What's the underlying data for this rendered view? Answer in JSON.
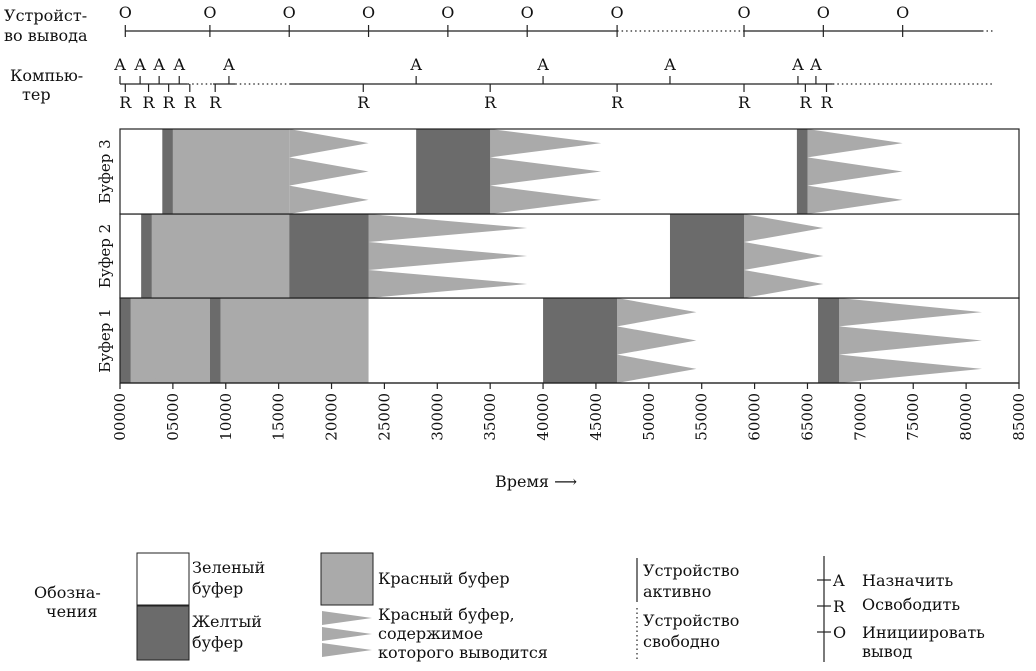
{
  "labels": {
    "device": [
      "Устройст-",
      "во вывода"
    ],
    "computer": [
      "Компью-",
      "тер"
    ],
    "buffers": [
      "Буфер 1",
      "Буфер 2",
      "Буфер 3"
    ],
    "time_axis": "Время ⟶",
    "legend_title": [
      "Обозна-",
      "чения"
    ],
    "legend_green": [
      "Зеленый",
      "буфер"
    ],
    "legend_yellow": [
      "Желтый",
      "буфер"
    ],
    "legend_red": "Красный буфер",
    "legend_red_out": [
      "Красный буфер,",
      "содержимое",
      "которого выводится"
    ],
    "legend_active": [
      "Устройство",
      "активно"
    ],
    "legend_idle": [
      "Устройство",
      "свободно"
    ],
    "legend_assign": "Назначить",
    "legend_release": "Освободить",
    "legend_output": "Инициировать",
    "legend_output2": "вывод",
    "letter_o": "O",
    "letter_a": "A",
    "letter_r": "R"
  },
  "colors": {
    "yellow": "#6b6b6b",
    "red": "#aaaaaa",
    "green": "#ffffff",
    "line": "#222222"
  },
  "time": {
    "min": 0,
    "max": 85000,
    "step": 5000,
    "tick_labels": [
      "00000",
      "05000",
      "10000",
      "15000",
      "20000",
      "25000",
      "30000",
      "35000",
      "40000",
      "45000",
      "50000",
      "55000",
      "60000",
      "65000",
      "70000",
      "75000",
      "80000",
      "85000"
    ]
  },
  "device_line": {
    "o_times": [
      500,
      8500,
      16000,
      23500,
      31000,
      38500,
      47000,
      59000,
      66500,
      74000
    ],
    "active": [
      [
        500,
        47000
      ],
      [
        59000,
        81500
      ]
    ],
    "idle": [
      [
        47000,
        59000
      ],
      [
        81500,
        82500
      ]
    ]
  },
  "computer_line": {
    "a_times": [
      0,
      1900,
      3700,
      5600,
      10300,
      28000,
      40000,
      52000,
      64100,
      65800
    ],
    "r_times": [
      500,
      2700,
      4600,
      6600,
      9000,
      23000,
      35000,
      47000,
      59000,
      64800,
      66800
    ],
    "active": [
      [
        0,
        6400
      ],
      [
        8800,
        10900
      ],
      [
        16000,
        67400
      ]
    ],
    "idle": [
      [
        6400,
        8800
      ],
      [
        10900,
        16000
      ],
      [
        67400,
        82500
      ]
    ]
  },
  "buffers": [
    {
      "name": "Буфер 1",
      "yellow": [
        [
          0,
          1000
        ],
        [
          8500,
          9500
        ],
        [
          40000,
          47000
        ],
        [
          66000,
          68000
        ]
      ],
      "red": [
        [
          1000,
          8500
        ],
        [
          9500,
          23500
        ],
        [
          47000,
          47000
        ],
        [
          68000,
          68000
        ]
      ],
      "output": [
        [
          1000,
          8500
        ],
        [
          9500,
          23500
        ],
        [
          47000,
          54500
        ],
        [
          68000,
          81500
        ]
      ]
    },
    {
      "name": "Буфер 2",
      "yellow": [
        [
          2000,
          3000
        ],
        [
          16000,
          23500
        ],
        [
          52000,
          59000
        ]
      ],
      "red": [
        [
          3000,
          16000
        ],
        [
          23500,
          23500
        ],
        [
          59000,
          59000
        ]
      ],
      "output": [
        [
          3000,
          16000
        ],
        [
          23500,
          38500
        ],
        [
          59000,
          66500
        ]
      ]
    },
    {
      "name": "Буфер 3",
      "yellow": [
        [
          4000,
          5000
        ],
        [
          28000,
          35000
        ],
        [
          64000,
          65000
        ]
      ],
      "red": [
        [
          5000,
          16000
        ],
        [
          35000,
          35000
        ],
        [
          65000,
          65000
        ]
      ],
      "output": [
        [
          16000,
          23500
        ],
        [
          35000,
          45500
        ],
        [
          65000,
          74000
        ]
      ]
    }
  ]
}
